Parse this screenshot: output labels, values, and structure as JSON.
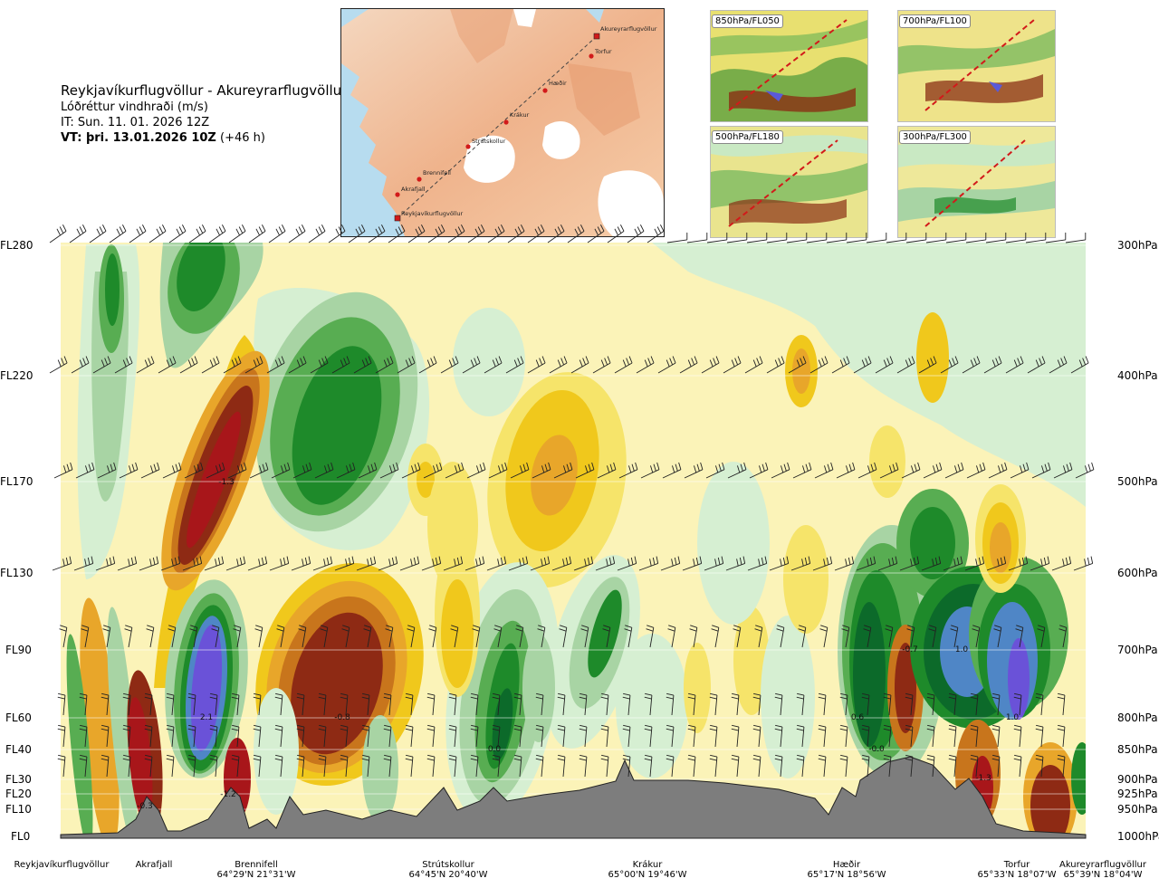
{
  "header": {
    "title": "Reykjavíkurflugvöllur - Akureyrarflugvöllur",
    "subtitle": "Lóðréttur vindhraði (m/s)",
    "issue_time": "IT: Sun. 11. 01. 2026 12Z",
    "valid_time_label": "VT: þri. 13.01.2026 10Z",
    "valid_time_offset": "(+46 h)"
  },
  "map": {
    "stations": [
      {
        "name": "Akureyrarflugvöllur",
        "marker": "square",
        "color": "#d21a1a"
      },
      {
        "name": "Torfur",
        "marker": "dot",
        "color": "#d21a1a"
      },
      {
        "name": "Hæðir",
        "marker": "dot",
        "color": "#d21a1a"
      },
      {
        "name": "Krákur",
        "marker": "dot",
        "color": "#d21a1a"
      },
      {
        "name": "Strútskollur",
        "marker": "dot",
        "color": "#d21a1a"
      },
      {
        "name": "Brennifell",
        "marker": "dot",
        "color": "#d21a1a"
      },
      {
        "name": "Akrafjall",
        "marker": "dot",
        "color": "#d21a1a"
      },
      {
        "name": "Reykjavíkurflugvöllur",
        "marker": "square",
        "color": "#d21a1a"
      }
    ]
  },
  "thumbnails": [
    {
      "label": "850hPa/FL050"
    },
    {
      "label": "700hPa/FL100"
    },
    {
      "label": "500hPa/FL180"
    },
    {
      "label": "300hPa/FL300"
    }
  ],
  "chart_data": {
    "type": "heatmap",
    "title": "Reykjavíkurflugvöllur - Akureyrarflugvöllur",
    "quantity": "Lóðréttur vindhraði (m/s)",
    "y_levels": [
      {
        "fl": "FL280",
        "hpa": "300hPa"
      },
      {
        "fl": "FL220",
        "hpa": "400hPa"
      },
      {
        "fl": "FL170",
        "hpa": "500hPa"
      },
      {
        "fl": "FL130",
        "hpa": "600hPa"
      },
      {
        "fl": "FL90",
        "hpa": "700hPa"
      },
      {
        "fl": "FL60",
        "hpa": "800hPa"
      },
      {
        "fl": "FL40",
        "hpa": "850hPa"
      },
      {
        "fl": "FL30",
        "hpa": "900hPa"
      },
      {
        "fl": "FL20",
        "hpa": "925hPa"
      },
      {
        "fl": "FL10",
        "hpa": "950hPa"
      },
      {
        "fl": "FL0",
        "hpa": "1000hPa"
      }
    ],
    "x_stations": [
      {
        "name": "Reykjavíkurflugvöllur",
        "coord": ""
      },
      {
        "name": "Akrafjall",
        "coord": ""
      },
      {
        "name": "Brennifell",
        "coord": "64°29'N 21°31'W"
      },
      {
        "name": "Strútskollur",
        "coord": "64°45'N 20°40'W"
      },
      {
        "name": "Krákur",
        "coord": "65°00'N 19°46'W"
      },
      {
        "name": "Hæðir",
        "coord": "65°17'N 18°56'W"
      },
      {
        "name": "Torfur",
        "coord": "65°33'N 18°07'W"
      },
      {
        "name": "Akureyrarflugvöllur",
        "coord": "65°39'N 18°04'W"
      }
    ],
    "annotations": [
      "-1.3",
      "2.1",
      "-0.8",
      "0.0",
      "-0.3",
      "-1.2",
      "0.6",
      "-0.0",
      "-0.7",
      "1.0",
      "1.0",
      "-1.3"
    ],
    "color_scale": {
      "neg_strong": "#8e2a14",
      "neg_dark": "#a8161a",
      "neg_med": "#c8751c",
      "neg_light": "#e8a62a",
      "neg_pale": "#f0c81c",
      "neg_faint": "#f6e46a",
      "zero": "#fbf3b8",
      "pos_faint": "#d6efd2",
      "pos_pale": "#a8d4a4",
      "pos_light": "#58ad52",
      "pos_med": "#1e8a2a",
      "pos_dark": "#0c6a2a",
      "pos_strong": "#4f86c6",
      "pos_max": "#6a52d8"
    },
    "terrain_color": "#7d7d7d"
  }
}
